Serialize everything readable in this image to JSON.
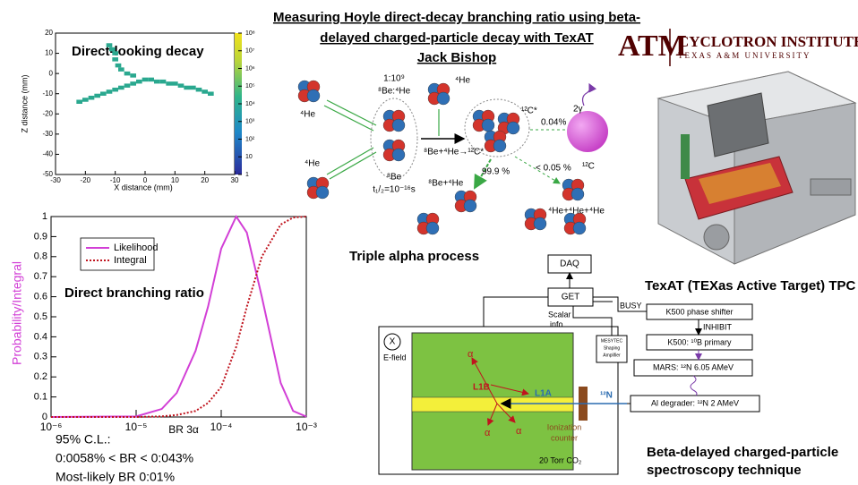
{
  "header": {
    "title_lines": [
      "Measuring Hoyle direct-decay branching ratio using beta-",
      "delayed charged-particle decay with TexAT",
      "Jack Bishop"
    ],
    "logo_letters": "ATM",
    "institute": "CYCLOTRON INSTITUTE",
    "university": "TEXAS A&M UNIVERSITY"
  },
  "track_plot": {
    "title": "Direct-looking decay",
    "xlabel": "X distance (mm)",
    "ylabel": "Z distance (mm)",
    "xlim": [
      -30,
      30
    ],
    "ylim": [
      -50,
      20
    ],
    "xticks": [
      -30,
      -20,
      -10,
      0,
      10,
      20,
      30
    ],
    "yticks": [
      -50,
      -40,
      -30,
      -20,
      -10,
      0,
      10,
      20
    ],
    "clim": [
      1,
      100000000
    ],
    "colorbar_ticks": [
      {
        "value": 1,
        "label": "1"
      },
      {
        "value": 10,
        "label": "10"
      },
      {
        "value": 100,
        "label": "10²"
      },
      {
        "value": 1000,
        "label": "10³"
      },
      {
        "value": 10000,
        "label": "10⁴"
      },
      {
        "value": 100000,
        "label": "10⁵"
      },
      {
        "value": 1000000,
        "label": "10⁶"
      },
      {
        "value": 10000000,
        "label": "10⁷"
      },
      {
        "value": 100000000,
        "label": "10⁸"
      }
    ],
    "color": "#2aa88f",
    "x": [
      -22,
      -20,
      -18,
      -16,
      -14,
      -12,
      -10,
      -8,
      -6,
      -4,
      -2,
      0,
      2,
      4,
      6,
      8,
      10,
      12,
      14,
      16,
      18,
      20,
      22,
      -12,
      -11,
      -10,
      -10,
      -9,
      -8,
      -6,
      -4
    ],
    "z": [
      -14,
      -13,
      -12,
      -11,
      -10,
      -9,
      -8,
      -7,
      -6,
      -5,
      -4,
      -3,
      -3,
      -4,
      -4,
      -5,
      -5,
      -6,
      -7,
      -7,
      -8,
      -9,
      -10,
      14,
      12,
      10,
      7,
      4,
      2,
      0,
      -1
    ]
  },
  "likelihood_plot": {
    "title": "Direct branching ratio",
    "xlabel": "BR 3α",
    "ylabel": "Probability/Integral",
    "x_log": true,
    "xlim": [
      1e-06,
      0.001
    ],
    "xticks": [
      {
        "value": 1e-06,
        "label": "10⁻⁶"
      },
      {
        "value": 1e-05,
        "label": "10⁻⁵"
      },
      {
        "value": 0.0001,
        "label": "10⁻⁴"
      },
      {
        "value": 0.001,
        "label": "10⁻³"
      }
    ],
    "ylim": [
      0,
      1
    ],
    "yticks": [
      0,
      0.1,
      0.2,
      0.3,
      0.4,
      0.5,
      0.6,
      0.7,
      0.8,
      0.9,
      1
    ],
    "x": [
      1e-06,
      1e-05,
      2e-05,
      3e-05,
      5e-05,
      7e-05,
      0.0001,
      0.00015,
      0.0002,
      0.0003,
      0.0005,
      0.0007,
      0.001
    ],
    "series": [
      {
        "name": "Likelihood",
        "color": "#d23fd6",
        "style": "solid",
        "values": [
          0,
          0.003,
          0.04,
          0.12,
          0.33,
          0.55,
          0.84,
          1,
          0.92,
          0.6,
          0.17,
          0.03,
          0.002
        ]
      },
      {
        "name": "Integral",
        "color": "#c0141e",
        "style": "dotted",
        "values": [
          0,
          0,
          0.003,
          0.01,
          0.03,
          0.07,
          0.15,
          0.35,
          0.55,
          0.8,
          0.96,
          0.995,
          1
        ]
      }
    ]
  },
  "result": {
    "lines": [
      "95% C.L.:",
      "0:0058% < BR < 0:043%",
      "Most-likely BR  0:01%"
    ]
  },
  "triple_alpha": {
    "he_left_top": "⁴He",
    "he_left_bottom": "⁴He",
    "ratio": "1:10⁹",
    "ratio_label": "⁸Be:⁴He",
    "he_top": "⁴He",
    "c12_star": "¹²C*",
    "gamma": "2γ",
    "gamma_branch": "0.04%",
    "c12": "¹²C",
    "reaction": "⁸Be+⁴He→¹²C*",
    "be8": "⁸Be",
    "halflife": "t₁/₂=10⁻¹⁶s",
    "seq_branch": "99.9 %",
    "direct_branch": "< 0.05 %",
    "seq_products": "⁸Be+⁴He",
    "direct_products": "⁴He+⁴He+⁴He",
    "caption": "Triple alpha process"
  },
  "detector": {
    "caption": "TexAT (TEXas Active Target) TPC"
  },
  "setup": {
    "daq": "DAQ",
    "get": "GET",
    "scalar_info": [
      "Scalar",
      "info"
    ],
    "busy": "BUSY",
    "phase_shifter": "K500 phase shifter",
    "inhibit": "INHIBIT",
    "primary": "K500: ¹⁰B primary",
    "mars": "MARS: ¹²N 6.05 AMeV",
    "degrader": "Al degrader: ¹²N 2 AMeV",
    "amplifier": [
      "MESYTEC",
      "Shaping",
      "Amplifier"
    ],
    "field_symbol": "X",
    "field": "E-field",
    "alpha_top": "α",
    "alpha_left": "α",
    "alpha_right": "α",
    "l1b": "L1B",
    "l1a": "L1A",
    "beam": "¹²N",
    "counter": [
      "Ionization",
      "counter"
    ],
    "gas": "20 Torr CO₂",
    "caption": [
      "Beta-delayed charged-particle",
      "spectroscopy technique"
    ]
  }
}
